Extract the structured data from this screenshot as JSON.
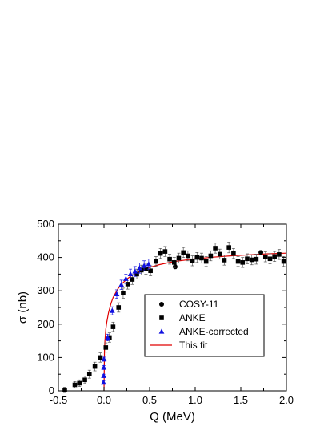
{
  "chart_data": {
    "type": "scatter",
    "xlabel": "Q (MeV)",
    "ylabel": "σ (nb)",
    "xlim": [
      -0.5,
      2.0
    ],
    "ylim": [
      0,
      500
    ],
    "x_ticks": [
      -0.5,
      0.0,
      0.5,
      1.0,
      1.5,
      2.0
    ],
    "x_tick_labels": [
      "-0.5",
      "0.0",
      "0.5",
      "1.0",
      "1.5",
      "2.0"
    ],
    "y_ticks": [
      0,
      100,
      200,
      300,
      400,
      500
    ],
    "y_tick_labels": [
      "0",
      "100",
      "200",
      "300",
      "400",
      "500"
    ],
    "grid": false,
    "legend_position": "center-right",
    "series": [
      {
        "name": "COSY-11",
        "marker": "circle",
        "color": "#000000",
        "points": [
          {
            "x": 0.78,
            "y": 372,
            "err": 6
          },
          {
            "x": 1.72,
            "y": 415,
            "err": 6
          }
        ]
      },
      {
        "name": "ANKE",
        "marker": "square",
        "color": "#000000",
        "points": [
          {
            "x": -0.43,
            "y": 3,
            "err": 8
          },
          {
            "x": -0.32,
            "y": 18,
            "err": 10
          },
          {
            "x": -0.27,
            "y": 23,
            "err": 10
          },
          {
            "x": -0.21,
            "y": 33,
            "err": 11
          },
          {
            "x": -0.16,
            "y": 50,
            "err": 12
          },
          {
            "x": -0.1,
            "y": 73,
            "err": 13
          },
          {
            "x": -0.04,
            "y": 100,
            "err": 14
          },
          {
            "x": 0.02,
            "y": 130,
            "err": 14
          },
          {
            "x": 0.06,
            "y": 160,
            "err": 14
          },
          {
            "x": 0.1,
            "y": 192,
            "err": 14
          },
          {
            "x": 0.16,
            "y": 250,
            "err": 14
          },
          {
            "x": 0.21,
            "y": 293,
            "err": 15
          },
          {
            "x": 0.26,
            "y": 320,
            "err": 15
          },
          {
            "x": 0.31,
            "y": 334,
            "err": 15
          },
          {
            "x": 0.36,
            "y": 350,
            "err": 15
          },
          {
            "x": 0.41,
            "y": 362,
            "err": 15
          },
          {
            "x": 0.46,
            "y": 365,
            "err": 15
          },
          {
            "x": 0.51,
            "y": 360,
            "err": 15
          },
          {
            "x": 0.57,
            "y": 388,
            "err": 15
          },
          {
            "x": 0.62,
            "y": 412,
            "err": 15
          },
          {
            "x": 0.67,
            "y": 418,
            "err": 15
          },
          {
            "x": 0.72,
            "y": 395,
            "err": 15
          },
          {
            "x": 0.77,
            "y": 385,
            "err": 15
          },
          {
            "x": 0.82,
            "y": 398,
            "err": 15
          },
          {
            "x": 0.87,
            "y": 415,
            "err": 15
          },
          {
            "x": 0.92,
            "y": 405,
            "err": 15
          },
          {
            "x": 0.97,
            "y": 390,
            "err": 15
          },
          {
            "x": 1.02,
            "y": 400,
            "err": 15
          },
          {
            "x": 1.07,
            "y": 398,
            "err": 15
          },
          {
            "x": 1.12,
            "y": 388,
            "err": 15
          },
          {
            "x": 1.17,
            "y": 405,
            "err": 15
          },
          {
            "x": 1.22,
            "y": 428,
            "err": 15
          },
          {
            "x": 1.27,
            "y": 410,
            "err": 15
          },
          {
            "x": 1.32,
            "y": 392,
            "err": 15
          },
          {
            "x": 1.37,
            "y": 430,
            "err": 16
          },
          {
            "x": 1.42,
            "y": 412,
            "err": 15
          },
          {
            "x": 1.47,
            "y": 388,
            "err": 15
          },
          {
            "x": 1.52,
            "y": 385,
            "err": 15
          },
          {
            "x": 1.57,
            "y": 396,
            "err": 15
          },
          {
            "x": 1.62,
            "y": 393,
            "err": 15
          },
          {
            "x": 1.67,
            "y": 395,
            "err": 15
          },
          {
            "x": 1.77,
            "y": 402,
            "err": 15
          },
          {
            "x": 1.82,
            "y": 396,
            "err": 15
          },
          {
            "x": 1.87,
            "y": 403,
            "err": 15
          },
          {
            "x": 1.92,
            "y": 409,
            "err": 15
          },
          {
            "x": 1.97,
            "y": 388,
            "err": 15
          }
        ]
      },
      {
        "name": "ANKE-corrected",
        "marker": "triangle",
        "color": "#1010e0",
        "points": [
          {
            "x": -0.005,
            "y": 25,
            "err": 5
          },
          {
            "x": -0.003,
            "y": 45,
            "err": 5
          },
          {
            "x": -0.002,
            "y": 70,
            "err": 6
          },
          {
            "x": 0.0,
            "y": 95,
            "err": 6
          },
          {
            "x": 0.04,
            "y": 160,
            "err": 10
          },
          {
            "x": 0.09,
            "y": 240,
            "err": 12
          },
          {
            "x": 0.14,
            "y": 290,
            "err": 13
          },
          {
            "x": 0.19,
            "y": 318,
            "err": 14
          },
          {
            "x": 0.24,
            "y": 336,
            "err": 14
          },
          {
            "x": 0.29,
            "y": 350,
            "err": 15
          },
          {
            "x": 0.34,
            "y": 358,
            "err": 15
          },
          {
            "x": 0.39,
            "y": 368,
            "err": 15
          },
          {
            "x": 0.44,
            "y": 375,
            "err": 15
          },
          {
            "x": 0.49,
            "y": 380,
            "err": 15
          }
        ]
      },
      {
        "name": "This fit",
        "marker": "line",
        "color": "#e00000",
        "curve": {
          "x": [
            0.0,
            0.005,
            0.01,
            0.02,
            0.03,
            0.05,
            0.08,
            0.1,
            0.15,
            0.2,
            0.25,
            0.3,
            0.4,
            0.5,
            0.6,
            0.7,
            0.8,
            1.0,
            1.2,
            1.4,
            1.6,
            1.8,
            2.0
          ],
          "y": [
            0,
            120,
            150,
            185,
            205,
            235,
            265,
            280,
            305,
            322,
            335,
            345,
            360,
            370,
            378,
            384,
            389,
            396,
            401,
            405,
            408,
            411,
            413
          ]
        }
      }
    ]
  }
}
